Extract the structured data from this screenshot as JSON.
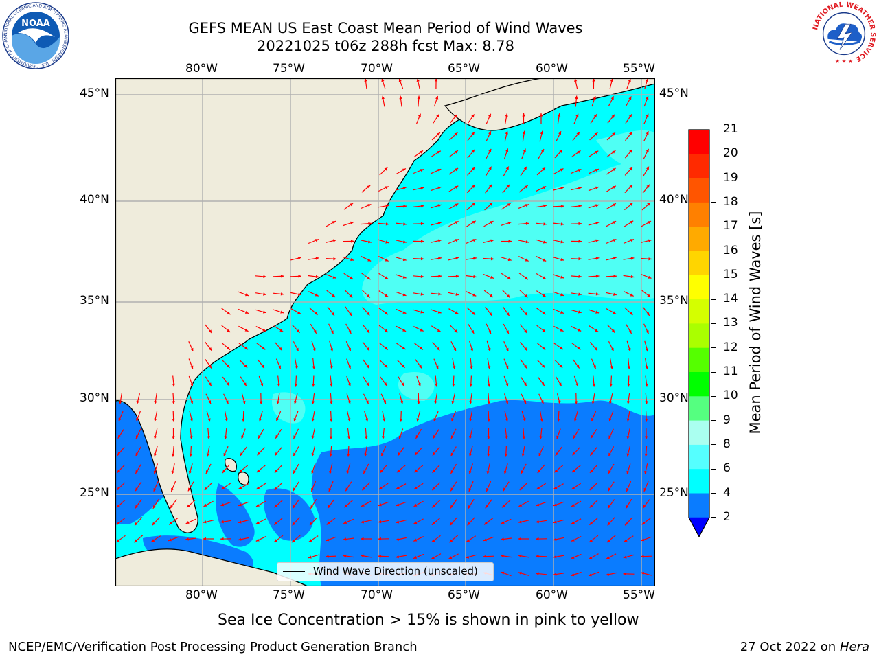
{
  "title": {
    "line1": "GEFS MEAN US East Coast Mean Period of Wind Waves",
    "line2": "20221025 t06z 288h fcst   Max: 8.78"
  },
  "map": {
    "lon_range": [
      -85,
      -54
    ],
    "lat_range": [
      20.5,
      46
    ],
    "lon_ticks": [
      "80°W",
      "75°W",
      "70°W",
      "65°W",
      "60°W",
      "55°W"
    ],
    "lat_ticks": [
      "45°N",
      "40°N",
      "35°N",
      "30°N",
      "25°N"
    ],
    "legend_label": "Wind Wave Direction (unscaled)",
    "colors": {
      "land": "#efecdc",
      "period_2_4": "#0a7cff",
      "period_4_6": "#00ffff",
      "period_6_8": "#4ffff4",
      "arrow": "#ff0000",
      "grid": "#b0b0b0"
    }
  },
  "colorbar": {
    "label": "Mean Period of Wind Waves [s]",
    "ticks": [
      "21",
      "20",
      "19",
      "18",
      "17",
      "16",
      "15",
      "14",
      "13",
      "12",
      "11",
      "10",
      "9",
      "8",
      "6",
      "4",
      "2"
    ],
    "colors": [
      "#ff0000",
      "#ff2a00",
      "#ff5500",
      "#ff8000",
      "#ffaa00",
      "#ffd500",
      "#ffff00",
      "#d4ff00",
      "#aaff00",
      "#55ff00",
      "#00ff00",
      "#55ff80",
      "#aafff0",
      "#55ffff",
      "#00ffff",
      "#0a7cff"
    ],
    "extend_color": "#0000ff"
  },
  "caption": "Sea Ice Concentration > 15% is shown in pink to yellow",
  "footer": {
    "left": "NCEP/EMC/Verification Post Processing Product Generation Branch",
    "right_date": "27 Oct 2022 on ",
    "right_machine": "Hera"
  },
  "logos": {
    "noaa_text": "NOAA",
    "noaa_ring": "NATIONAL OCEANIC AND ATMOSPHERIC ADMINISTRATION · U.S. DEPARTMENT OF COMMERCE",
    "nws_ring": "NATIONAL WEATHER SERVICE"
  }
}
